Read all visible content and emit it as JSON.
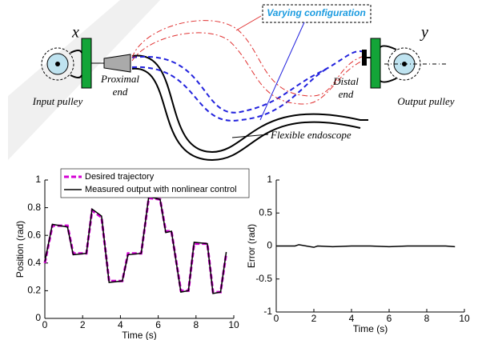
{
  "diagram": {
    "x_label": "x",
    "y_label": "y",
    "varying": "Varying configuration",
    "proximal": [
      "Proximal",
      "end"
    ],
    "distal": [
      "Distal",
      "end"
    ],
    "input": "Input pulley",
    "output": "Output pulley",
    "endoscope": "Flexible endoscope"
  },
  "chart_data": [
    {
      "type": "line",
      "xlabel": "Time (s)",
      "ylabel": "Position (rad)",
      "xlim": [
        0,
        10
      ],
      "ylim": [
        0,
        1
      ],
      "xticks": [
        0,
        2,
        4,
        6,
        8,
        10
      ],
      "yticks": [
        0,
        0.2,
        0.4,
        0.6,
        0.8,
        1
      ],
      "legend": "upper left",
      "x": [
        0,
        0.4,
        1.2,
        1.5,
        2.2,
        2.5,
        3.0,
        3.4,
        4.1,
        4.4,
        5.1,
        5.5,
        6.1,
        6.4,
        6.7,
        7.2,
        7.6,
        7.9,
        8.6,
        8.9,
        9.3,
        9.6
      ],
      "series": [
        {
          "name": "Desired trajectory",
          "color": "#d400d4",
          "linestyle": "dashed",
          "values": [
            0.4,
            0.67,
            0.67,
            0.47,
            0.47,
            0.78,
            0.73,
            0.27,
            0.27,
            0.47,
            0.47,
            0.87,
            0.86,
            0.63,
            0.63,
            0.2,
            0.2,
            0.54,
            0.54,
            0.19,
            0.19,
            0.47
          ]
        },
        {
          "name": "Measured output with nonlinear control",
          "color": "#000000",
          "linestyle": "solid",
          "values": [
            0.41,
            0.68,
            0.66,
            0.46,
            0.47,
            0.79,
            0.74,
            0.26,
            0.27,
            0.46,
            0.47,
            0.88,
            0.86,
            0.62,
            0.63,
            0.19,
            0.2,
            0.55,
            0.54,
            0.18,
            0.19,
            0.48
          ]
        }
      ]
    },
    {
      "type": "line",
      "xlabel": "Time (s)",
      "ylabel": "Error (rad)",
      "xlim": [
        0,
        10
      ],
      "ylim": [
        -1,
        1
      ],
      "xticks": [
        0,
        2,
        4,
        6,
        8,
        10
      ],
      "yticks": [
        -1,
        -0.5,
        0,
        0.5,
        1
      ],
      "x": [
        0,
        1,
        1.2,
        2,
        2.2,
        3,
        4,
        5,
        6,
        7,
        8,
        9,
        9.5
      ],
      "series": [
        {
          "color": "#000000",
          "linestyle": "solid",
          "values": [
            0,
            0,
            0.02,
            -0.02,
            0,
            -0.01,
            0,
            0,
            -0.01,
            0,
            0,
            0,
            -0.01
          ]
        }
      ]
    }
  ]
}
